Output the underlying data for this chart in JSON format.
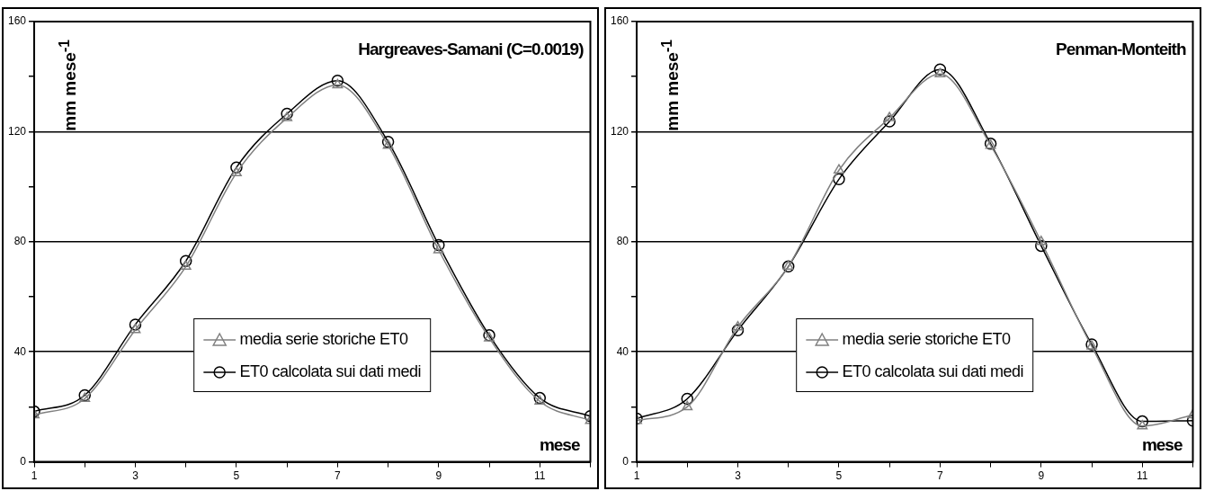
{
  "chart_data": [
    {
      "type": "line",
      "title": "Hargreaves-Samani (C=0.0019)",
      "xlabel": "mese",
      "ylabel": "mm mese$^{-1}$",
      "x": [
        1,
        2,
        3,
        4,
        5,
        6,
        7,
        8,
        9,
        10,
        11,
        12
      ],
      "series": [
        {
          "name": "media serie storiche ET0",
          "color": "#808080",
          "marker": "triangle",
          "values": [
            17,
            23,
            48,
            71,
            105,
            125,
            137,
            115,
            77,
            45,
            22,
            15
          ]
        },
        {
          "name": "ET0 calcolata sui dati medi",
          "color": "#000000",
          "marker": "circle",
          "values": [
            18.3,
            24.2,
            49.9,
            73,
            107,
            126.5,
            138.5,
            116.3,
            78.8,
            46,
            23.2,
            16.6
          ]
        }
      ],
      "xlim": [
        1,
        12
      ],
      "xticks": [
        1,
        {
          "value": 2,
          "label": null
        },
        3,
        {
          "value": 4,
          "label": null
        },
        5,
        {
          "value": 6,
          "label": null
        },
        7,
        {
          "value": 8,
          "label": null
        },
        9,
        {
          "value": 10,
          "label": null
        },
        11,
        {
          "value": 12,
          "label": null
        }
      ],
      "ylim": [
        0,
        160
      ],
      "yticks": [
        0,
        {
          "value": 20,
          "label": null
        },
        40,
        {
          "value": 60,
          "label": null
        },
        80,
        {
          "value": 100,
          "label": null
        },
        120,
        {
          "value": 140,
          "label": null
        },
        160
      ],
      "grid": "y",
      "legend": "bottom"
    },
    {
      "type": "line",
      "title": "Penman-Monteith",
      "xlabel": "mese",
      "ylabel": "mm mese$^{-1}$",
      "x": [
        1,
        2,
        3,
        4,
        5,
        6,
        7,
        8,
        9,
        10,
        11,
        12
      ],
      "series": [
        {
          "name": "media serie storiche ET0",
          "color": "#808080",
          "marker": "triangle",
          "values": [
            15,
            20,
            49,
            71,
            106,
            125,
            141,
            115,
            80,
            42,
            13,
            17
          ]
        },
        {
          "name": "ET0 calcolata sui dati medi",
          "color": "#000000",
          "marker": "circle",
          "values": [
            15.7,
            22.9,
            47.8,
            71,
            102.7,
            123.7,
            142.6,
            115.6,
            78.5,
            42.7,
            14.7,
            15
          ]
        }
      ],
      "xlim": [
        1,
        12
      ],
      "xticks": [
        1,
        {
          "value": 2,
          "label": null
        },
        3,
        {
          "value": 4,
          "label": null
        },
        5,
        {
          "value": 6,
          "label": null
        },
        7,
        {
          "value": 8,
          "label": null
        },
        9,
        {
          "value": 10,
          "label": null
        },
        11,
        {
          "value": 12,
          "label": null
        }
      ],
      "ylim": [
        0,
        160
      ],
      "yticks": [
        0,
        {
          "value": 20,
          "label": null
        },
        40,
        {
          "value": 60,
          "label": null
        },
        80,
        {
          "value": 100,
          "label": null
        },
        120,
        {
          "value": 140,
          "label": null
        },
        160
      ],
      "grid": "y",
      "legend": "bottom"
    }
  ]
}
